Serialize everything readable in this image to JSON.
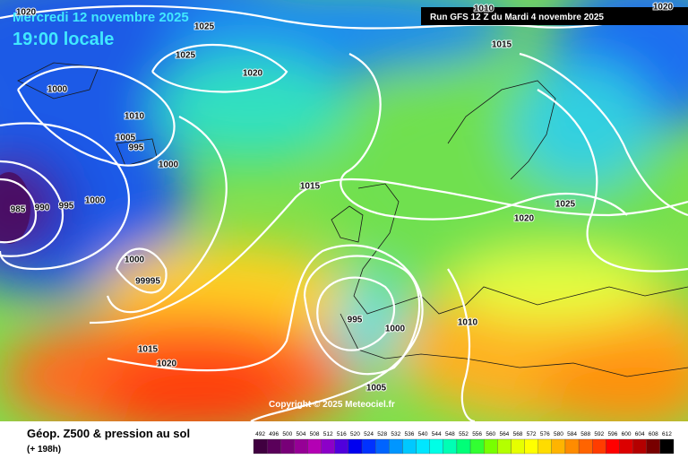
{
  "header": {
    "date": "Mercredi 12 novembre 2025",
    "time": "19:00 locale",
    "run": "Run GFS 12 Z du Mardi 4 novembre 2025"
  },
  "copyright": "Copyright © 2025 Meteociel.fr",
  "isobar_labels": [
    "1020",
    "1025",
    "1025",
    "1020",
    "1000",
    "1010",
    "1005",
    "995",
    "1000",
    "985",
    "990",
    "995",
    "1000",
    "1000",
    "99995",
    "1015",
    "1020",
    "1015",
    "1015",
    "1020",
    "1025",
    "1010",
    "1020",
    "1010",
    "995",
    "1000",
    "1005"
  ],
  "legend": {
    "title": "Géop. Z500 & pression au sol",
    "subtitle": "(+ 198h)",
    "values": [
      492,
      496,
      500,
      504,
      508,
      512,
      516,
      520,
      524,
      528,
      532,
      536,
      540,
      544,
      548,
      552,
      556,
      560,
      564,
      568,
      572,
      576,
      580,
      584,
      588,
      592,
      596,
      600,
      604,
      608,
      612
    ],
    "colors": [
      "#400040",
      "#5a005a",
      "#780078",
      "#960096",
      "#b400b4",
      "#8c00c8",
      "#5000dc",
      "#0000f0",
      "#0032ff",
      "#0064ff",
      "#0096ff",
      "#00c8ff",
      "#00e6ff",
      "#00ffe6",
      "#00ffb4",
      "#00ff78",
      "#32ff32",
      "#78ff00",
      "#b4ff00",
      "#e6ff00",
      "#ffff00",
      "#ffdc00",
      "#ffb400",
      "#ff8c00",
      "#ff6400",
      "#ff3c00",
      "#ff0000",
      "#dc0000",
      "#b40000",
      "#780000",
      "#000000"
    ]
  }
}
